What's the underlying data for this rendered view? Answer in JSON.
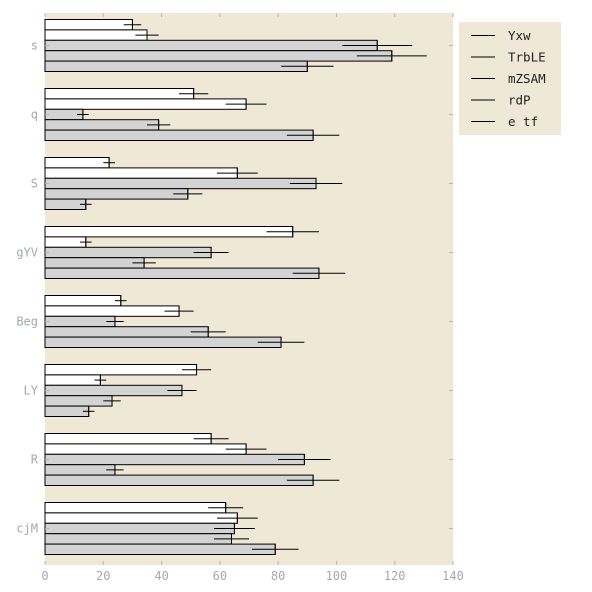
{
  "chart_data": {
    "type": "bar",
    "orientation": "horizontal",
    "categories": [
      "s",
      "q",
      "S",
      "gYV",
      "Beg",
      "LY",
      "R",
      "cjM"
    ],
    "series": [
      {
        "name": "Yxw",
        "values": [
          30,
          51,
          22,
          85,
          26,
          52,
          57,
          62
        ],
        "errors": [
          3,
          5,
          2,
          9,
          2,
          5,
          6,
          6
        ],
        "color": "#ffffff"
      },
      {
        "name": "TrbLE",
        "values": [
          35,
          69,
          66,
          14,
          46,
          19,
          69,
          66
        ],
        "errors": [
          4,
          7,
          7,
          2,
          5,
          2,
          7,
          7
        ],
        "color": "#ffffff"
      },
      {
        "name": "mZSAM",
        "values": [
          114,
          13,
          93,
          57,
          24,
          47,
          89,
          65
        ],
        "errors": [
          12,
          2,
          9,
          6,
          3,
          5,
          9,
          7
        ],
        "color": "#d3d3d3"
      },
      {
        "name": "rdP",
        "values": [
          119,
          39,
          49,
          34,
          56,
          23,
          24,
          64
        ],
        "errors": [
          12,
          4,
          5,
          4,
          6,
          3,
          3,
          6
        ],
        "color": "#d3d3d3"
      },
      {
        "name": "e tf",
        "values": [
          90,
          92,
          14,
          94,
          81,
          15,
          92,
          79
        ],
        "errors": [
          9,
          9,
          2,
          9,
          8,
          2,
          9,
          8
        ],
        "color": "#d3d3d3"
      }
    ],
    "xlim": [
      0,
      140
    ],
    "xticks": [
      0,
      20,
      40,
      60,
      80,
      100,
      120,
      140
    ],
    "xlabel": "",
    "ylabel": "",
    "title": "",
    "grid": false,
    "legend_position": "top-right-outside",
    "background_color": "#efe8d7"
  }
}
